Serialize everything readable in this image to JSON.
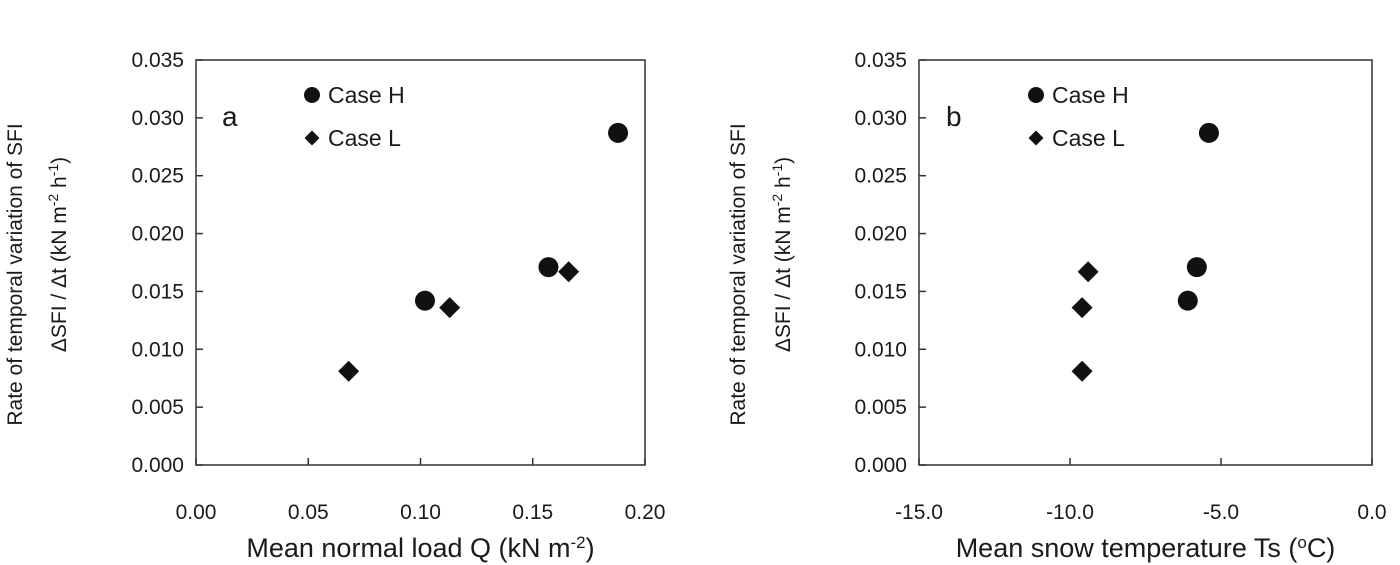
{
  "chart_data": [
    {
      "type": "scatter",
      "panel_label": "a",
      "xlabel": "Mean normal load Q (kN m",
      "xlabel_sup": "-2",
      "xlabel_end": ")",
      "ylabel_line1": "Rate of temporal variation of SFI",
      "ylabel_line2": "ΔSFI / Δt  (kN m",
      "ylabel_sup1": "-2",
      "ylabel_mid": " h",
      "ylabel_sup2": "-1",
      "ylabel_end": ")",
      "xlim": [
        0.0,
        0.2
      ],
      "ylim": [
        0.0,
        0.035
      ],
      "x_ticks": [
        "0.00",
        "0.05",
        "0.10",
        "0.15",
        "0.20"
      ],
      "x_tick_values": [
        0.0,
        0.05,
        0.1,
        0.15,
        0.2
      ],
      "y_ticks": [
        "0.000",
        "0.005",
        "0.010",
        "0.015",
        "0.020",
        "0.025",
        "0.030",
        "0.035"
      ],
      "y_tick_values": [
        0.0,
        0.005,
        0.01,
        0.015,
        0.02,
        0.025,
        0.03,
        0.035
      ],
      "legend_position": "top-center",
      "grid": false,
      "series": [
        {
          "name": "Case H",
          "marker": "circle",
          "points": [
            [
              0.102,
              0.0142
            ],
            [
              0.157,
              0.0171
            ],
            [
              0.188,
              0.0287
            ]
          ]
        },
        {
          "name": "Case L",
          "marker": "diamond",
          "points": [
            [
              0.068,
              0.0081
            ],
            [
              0.113,
              0.0136
            ],
            [
              0.166,
              0.0167
            ]
          ]
        }
      ]
    },
    {
      "type": "scatter",
      "panel_label": "b",
      "xlabel": "Mean snow temperature Ts (",
      "xlabel_sup": "o",
      "xlabel_end": "C)",
      "ylabel_line1": "Rate of temporal variation of SFI",
      "ylabel_line2": "ΔSFI / Δt  (kN m",
      "ylabel_sup1": "-2",
      "ylabel_mid": " h",
      "ylabel_sup2": "-1",
      "ylabel_end": ")",
      "xlim": [
        -15.0,
        0.0
      ],
      "ylim": [
        0.0,
        0.035
      ],
      "x_ticks": [
        "-15.0",
        "-10.0",
        "-5.0",
        "0.0"
      ],
      "x_tick_values": [
        -15.0,
        -10.0,
        -5.0,
        0.0
      ],
      "y_ticks": [
        "0.000",
        "0.005",
        "0.010",
        "0.015",
        "0.020",
        "0.025",
        "0.030",
        "0.035"
      ],
      "y_tick_values": [
        0.0,
        0.005,
        0.01,
        0.015,
        0.02,
        0.025,
        0.03,
        0.035
      ],
      "legend_position": "top-center",
      "grid": false,
      "series": [
        {
          "name": "Case H",
          "marker": "circle",
          "points": [
            [
              -6.1,
              0.0142
            ],
            [
              -5.8,
              0.0171
            ],
            [
              -5.4,
              0.0287
            ]
          ]
        },
        {
          "name": "Case L",
          "marker": "diamond",
          "points": [
            [
              -9.6,
              0.0081
            ],
            [
              -9.6,
              0.0136
            ],
            [
              -9.4,
              0.0167
            ]
          ]
        }
      ]
    }
  ]
}
